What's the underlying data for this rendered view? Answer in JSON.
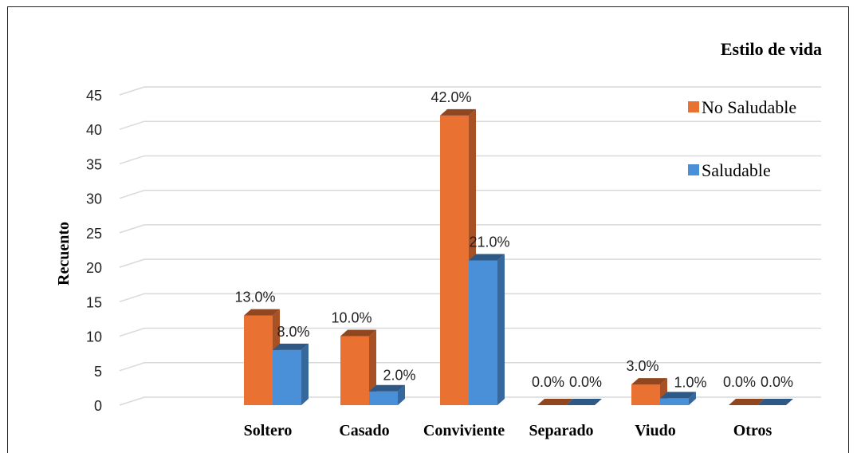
{
  "chart_data": {
    "type": "bar",
    "ylabel": "Recuento",
    "ylim": [
      0,
      45
    ],
    "yticks": [
      0,
      5,
      10,
      15,
      20,
      25,
      30,
      35,
      40,
      45
    ],
    "grid": true,
    "legend": {
      "title": "Estilo de vida",
      "position": "top-right"
    },
    "categories": [
      "Soltero",
      "Casado",
      "Conviviente",
      "Separado",
      "Viudo",
      "Otros"
    ],
    "series": [
      {
        "name": "No Saludable",
        "color": "#E97132",
        "values": [
          13,
          10,
          42,
          0,
          3,
          0
        ],
        "labels": [
          "13.0%",
          "10.0%",
          "42.0%",
          "0.0%",
          "3.0%",
          "0.0%"
        ]
      },
      {
        "name": "Saludable",
        "color": "#4A90D9",
        "values": [
          8,
          2,
          21,
          0,
          1,
          0
        ],
        "labels": [
          "8.0%",
          "2.0%",
          "21.0%",
          "0.0%",
          "1.0%",
          "0.0%"
        ]
      }
    ]
  }
}
